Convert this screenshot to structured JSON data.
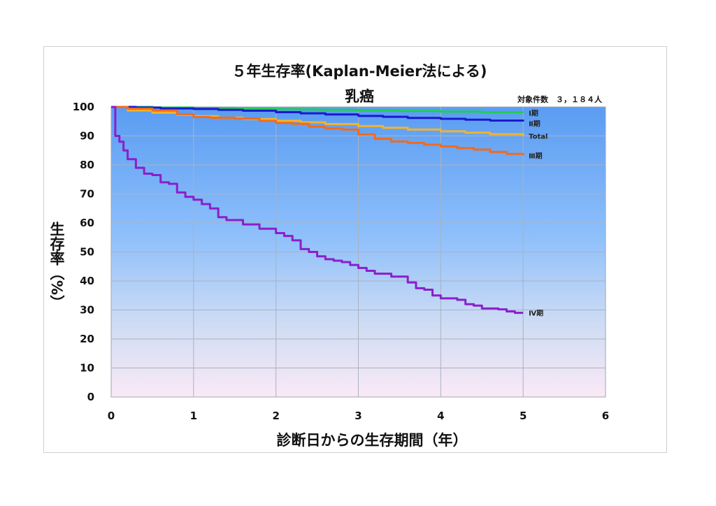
{
  "chart_data": {
    "type": "line",
    "title": "５年生存率(Kaplan-Meier法による)",
    "subtitle": "乳癌",
    "case_count_label": "対象件数　３，１８４人",
    "xlabel": "診断日からの生存期間（年）",
    "ylabel": "生存率（%）",
    "xlim": [
      0,
      6
    ],
    "ylim": [
      0,
      100
    ],
    "x_ticks": [
      "0",
      "1",
      "2",
      "3",
      "4",
      "5",
      "6"
    ],
    "y_ticks": [
      "0",
      "10",
      "20",
      "30",
      "40",
      "50",
      "60",
      "70",
      "80",
      "90",
      "100"
    ],
    "grid": true,
    "series": [
      {
        "name": "Ⅰ期",
        "color": "#22cc55",
        "width": 3,
        "points": [
          [
            0,
            100
          ],
          [
            0.5,
            99.8
          ],
          [
            1,
            99.6
          ],
          [
            1.5,
            99.4
          ],
          [
            2,
            99.2
          ],
          [
            2.5,
            99
          ],
          [
            3,
            98.8
          ],
          [
            3.5,
            98.6
          ],
          [
            4,
            98.4
          ],
          [
            4.5,
            98.2
          ],
          [
            5,
            98
          ]
        ]
      },
      {
        "name": "Ⅱ期",
        "color": "#1a1acc",
        "width": 3,
        "points": [
          [
            0,
            100
          ],
          [
            0.3,
            99.8
          ],
          [
            0.6,
            99.5
          ],
          [
            1,
            99.3
          ],
          [
            1.3,
            99
          ],
          [
            1.6,
            98.7
          ],
          [
            2,
            98.2
          ],
          [
            2.3,
            97.8
          ],
          [
            2.6,
            97.4
          ],
          [
            3,
            96.9
          ],
          [
            3.3,
            96.6
          ],
          [
            3.6,
            96.2
          ],
          [
            4,
            95.9
          ],
          [
            4.3,
            95.6
          ],
          [
            4.6,
            95.3
          ],
          [
            5,
            95
          ]
        ]
      },
      {
        "name": "Total",
        "color": "#f4b32c",
        "width": 3,
        "points": [
          [
            0,
            100
          ],
          [
            0.2,
            98.8
          ],
          [
            0.5,
            98
          ],
          [
            0.8,
            97.3
          ],
          [
            1,
            96.8
          ],
          [
            1.3,
            96.3
          ],
          [
            1.6,
            95.8
          ],
          [
            2,
            95.2
          ],
          [
            2.3,
            94.7
          ],
          [
            2.6,
            94.1
          ],
          [
            3,
            93.4
          ],
          [
            3.3,
            92.8
          ],
          [
            3.6,
            92.2
          ],
          [
            4,
            91.6
          ],
          [
            4.3,
            91.1
          ],
          [
            4.6,
            90.6
          ],
          [
            5,
            90
          ]
        ]
      },
      {
        "name": "Ⅲ期",
        "color": "#f26b1d",
        "width": 3,
        "points": [
          [
            0,
            100
          ],
          [
            0.2,
            99.4
          ],
          [
            0.5,
            98.8
          ],
          [
            0.8,
            97.5
          ],
          [
            1,
            96.5
          ],
          [
            1.2,
            96.3
          ],
          [
            1.5,
            96
          ],
          [
            1.8,
            95.2
          ],
          [
            2,
            94.5
          ],
          [
            2.2,
            94.2
          ],
          [
            2.4,
            93.2
          ],
          [
            2.6,
            92.6
          ],
          [
            2.8,
            92.2
          ],
          [
            3,
            90.5
          ],
          [
            3.2,
            89
          ],
          [
            3.4,
            88.1
          ],
          [
            3.6,
            87.6
          ],
          [
            3.8,
            87
          ],
          [
            4,
            86.4
          ],
          [
            4.2,
            85.8
          ],
          [
            4.4,
            85.3
          ],
          [
            4.6,
            84.5
          ],
          [
            4.8,
            83.8
          ],
          [
            5,
            83.3
          ]
        ]
      },
      {
        "name": "Ⅳ期",
        "color": "#8a1fcc",
        "width": 3,
        "points": [
          [
            0,
            100
          ],
          [
            0.05,
            90
          ],
          [
            0.1,
            88
          ],
          [
            0.15,
            85
          ],
          [
            0.2,
            82
          ],
          [
            0.3,
            79
          ],
          [
            0.4,
            77
          ],
          [
            0.5,
            76.5
          ],
          [
            0.6,
            74
          ],
          [
            0.7,
            73.5
          ],
          [
            0.8,
            70.5
          ],
          [
            0.9,
            69
          ],
          [
            1,
            68
          ],
          [
            1.1,
            66.5
          ],
          [
            1.2,
            65
          ],
          [
            1.3,
            62
          ],
          [
            1.4,
            61
          ],
          [
            1.5,
            61
          ],
          [
            1.6,
            59.5
          ],
          [
            1.8,
            58
          ],
          [
            2,
            56.5
          ],
          [
            2.1,
            55.5
          ],
          [
            2.2,
            54
          ],
          [
            2.3,
            51
          ],
          [
            2.4,
            50
          ],
          [
            2.5,
            48.5
          ],
          [
            2.6,
            47.5
          ],
          [
            2.7,
            47
          ],
          [
            2.8,
            46.5
          ],
          [
            2.9,
            45.5
          ],
          [
            3,
            44.5
          ],
          [
            3.1,
            43.5
          ],
          [
            3.2,
            42.5
          ],
          [
            3.4,
            41.5
          ],
          [
            3.6,
            39.5
          ],
          [
            3.7,
            37.5
          ],
          [
            3.8,
            37
          ],
          [
            3.9,
            35
          ],
          [
            4,
            34
          ],
          [
            4.2,
            33.5
          ],
          [
            4.3,
            32
          ],
          [
            4.4,
            31.5
          ],
          [
            4.5,
            30.5
          ],
          [
            4.6,
            30.5
          ],
          [
            4.7,
            30.2
          ],
          [
            4.8,
            29.5
          ],
          [
            4.9,
            29
          ],
          [
            5,
            29
          ]
        ]
      }
    ]
  }
}
